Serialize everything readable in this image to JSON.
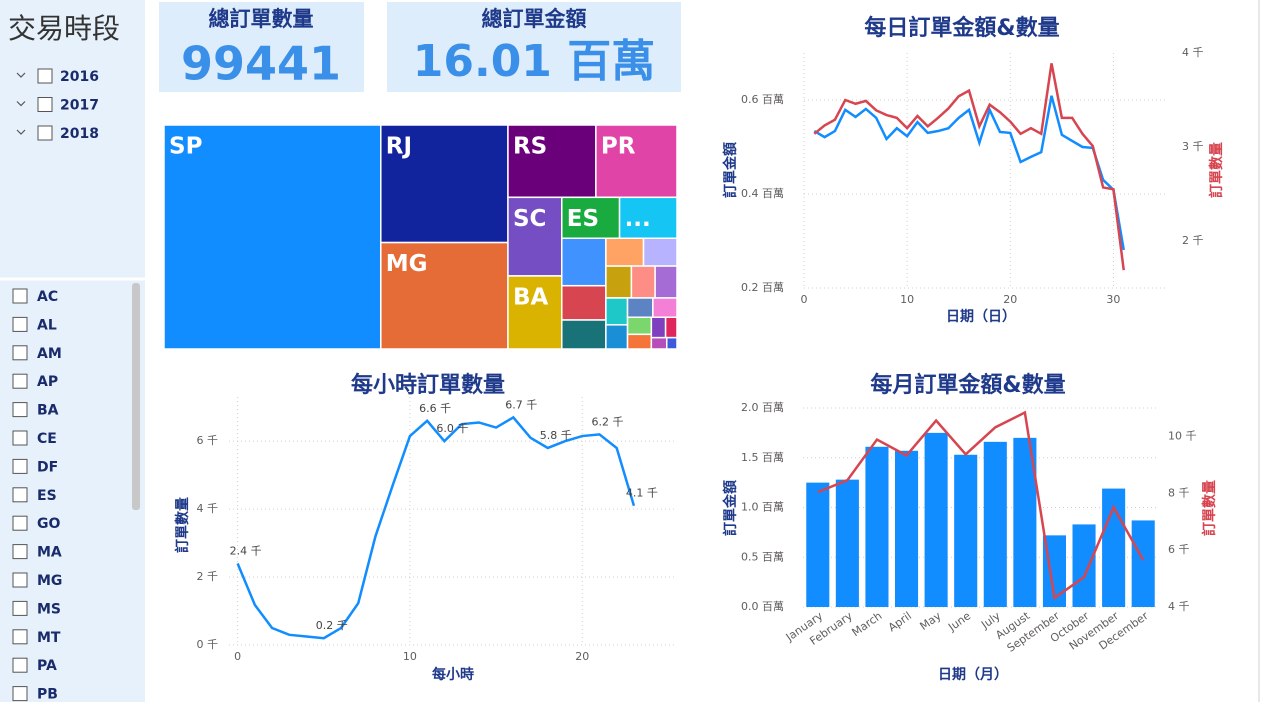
{
  "slicer": {
    "title": "交易時段",
    "years": [
      "2016",
      "2017",
      "2018"
    ],
    "states": [
      "AC",
      "AL",
      "AM",
      "AP",
      "BA",
      "CE",
      "DF",
      "ES",
      "GO",
      "MA",
      "MG",
      "MS",
      "MT",
      "PA",
      "PB"
    ]
  },
  "cards": [
    {
      "title": "總訂單數量",
      "value": 99441
    },
    {
      "title": "總訂單金額",
      "value": "16.01 百萬"
    }
  ],
  "chart_data": [
    {
      "type": "treemap",
      "categories": [
        "SP",
        "RJ",
        "MG",
        "RS",
        "PR",
        "SC",
        "BA",
        "ES",
        "...",
        null,
        null,
        null,
        null,
        null,
        null,
        null,
        null,
        null,
        null,
        null,
        null,
        null,
        null,
        null,
        null,
        null,
        null
      ],
      "values": [
        41746,
        12852,
        11635,
        5466,
        5045,
        3637,
        3380,
        2033,
        2020,
        1800,
        1300,
        1100,
        900,
        800,
        700,
        650,
        600,
        500,
        450,
        420,
        400,
        350,
        300,
        250,
        200,
        150,
        100
      ],
      "colors": [
        "#118dff",
        "#12239e",
        "#e66c37",
        "#6b007b",
        "#e044a7",
        "#744ec2",
        "#d9b300",
        "#1aab40",
        "#15c6f4",
        "#4092ff",
        "#d64550",
        "#197278",
        "#fea363",
        "#b7b3ff",
        "#c8a10f",
        "#fd8d85",
        "#a66cd6",
        "#1ec8c8",
        "#1a8fd6",
        "#5c84c4",
        "#f47fd7",
        "#7bd76d",
        "#f5743a",
        "#7f3fbf",
        "#e0255d",
        "#b54dbb",
        "#3b5bdb"
      ]
    },
    {
      "type": "line",
      "title": "每日訂單金額&數量",
      "xlabel": "日期（日）",
      "ylabel": "訂單金額",
      "y2label": "訂單數量",
      "x": [
        1,
        2,
        3,
        4,
        5,
        6,
        7,
        8,
        9,
        10,
        11,
        12,
        13,
        14,
        15,
        16,
        17,
        18,
        19,
        20,
        21,
        22,
        23,
        24,
        25,
        26,
        27,
        28,
        29,
        30,
        31
      ],
      "series": [
        {
          "color": "#118dff",
          "values": [
            0.534,
            0.521,
            0.534,
            0.579,
            0.564,
            0.581,
            0.562,
            0.517,
            0.54,
            0.523,
            0.553,
            0.53,
            0.534,
            0.54,
            0.562,
            0.579,
            0.509,
            0.579,
            0.532,
            0.53,
            0.468,
            0.479,
            0.489,
            0.609,
            0.526,
            0.513,
            0.5,
            0.498,
            0.43,
            0.409,
            0.281
          ]
        },
        {
          "color": "#d64550",
          "axis": "y2",
          "values": [
            3.14,
            3.23,
            3.29,
            3.5,
            3.46,
            3.49,
            3.39,
            3.34,
            3.31,
            3.2,
            3.33,
            3.22,
            3.31,
            3.41,
            3.54,
            3.6,
            3.22,
            3.45,
            3.37,
            3.27,
            3.14,
            3.2,
            3.14,
            3.89,
            3.31,
            3.31,
            3.14,
            3.01,
            2.57,
            2.55,
            1.69
          ]
        }
      ],
      "xlim": [
        0,
        35
      ],
      "xticks": [
        0,
        10,
        20,
        30
      ],
      "ylim": [
        0.2,
        0.7
      ],
      "yticks": [
        {
          "value": 0.2,
          "label": "0.2 百萬"
        },
        {
          "value": 0.4,
          "label": "0.4 百萬"
        },
        {
          "value": 0.6,
          "label": "0.6 百萬"
        }
      ],
      "y2lim": [
        1.5,
        4
      ],
      "y2ticks": [
        {
          "value": 2,
          "label": "2 千"
        },
        {
          "value": 3,
          "label": "3 千"
        },
        {
          "value": 4,
          "label": "4 千"
        }
      ],
      "grid": true
    },
    {
      "type": "line",
      "title": "每小時訂單數量",
      "xlabel": "每小時",
      "ylabel": "訂單數量",
      "x": [
        0,
        1,
        2,
        3,
        4,
        5,
        6,
        7,
        8,
        9,
        10,
        11,
        12,
        13,
        14,
        15,
        16,
        17,
        18,
        19,
        20,
        21,
        22,
        23
      ],
      "series": [
        {
          "color": "#118dff",
          "values": [
            2.4,
            1.18,
            0.5,
            0.3,
            0.25,
            0.2,
            0.5,
            1.23,
            3.2,
            4.7,
            6.15,
            6.6,
            6.0,
            6.5,
            6.55,
            6.4,
            6.7,
            6.1,
            5.8,
            6.0,
            6.15,
            6.2,
            5.8,
            4.1
          ],
          "value_labels": [
            "2.4 千",
            null,
            null,
            null,
            null,
            "0.2 千",
            null,
            null,
            null,
            null,
            null,
            "6.6 千",
            "6.0 千",
            null,
            null,
            null,
            "6.7 千",
            null,
            "5.8 千",
            null,
            null,
            "6.2 千",
            null,
            "4.1 千"
          ]
        }
      ],
      "xlim": [
        -0.5,
        25.5
      ],
      "xticks": [
        0,
        10,
        20
      ],
      "ylim": [
        0,
        7.3
      ],
      "yticks": [
        {
          "value": 0,
          "label": "0 千"
        },
        {
          "value": 2,
          "label": "2 千"
        },
        {
          "value": 4,
          "label": "4 千"
        },
        {
          "value": 6,
          "label": "6 千"
        }
      ],
      "grid": true
    },
    {
      "type": "bar",
      "title": "每月訂單金額&數量",
      "xlabel": "日期（月）",
      "ylabel": "訂單金額",
      "y2label": "訂單數量",
      "categories": [
        "January",
        "February",
        "March",
        "April",
        "May",
        "June",
        "July",
        "August",
        "September",
        "October",
        "November",
        "December"
      ],
      "series": [
        {
          "type": "bar",
          "color": "#118dff",
          "values": [
            1.25,
            1.28,
            1.61,
            1.57,
            1.75,
            1.53,
            1.66,
            1.7,
            0.72,
            0.83,
            1.19,
            0.87
          ]
        },
        {
          "type": "line",
          "color": "#d64550",
          "axis": "y2",
          "values": [
            8.04,
            8.46,
            9.89,
            9.33,
            10.56,
            9.37,
            10.32,
            10.84,
            4.32,
            5.05,
            7.51,
            5.65
          ]
        }
      ],
      "ylim": [
        0,
        2
      ],
      "yticks": [
        {
          "value": 0,
          "label": "0.0 百萬"
        },
        {
          "value": 0.5,
          "label": "0.5 百萬"
        },
        {
          "value": 1,
          "label": "1.0 百萬"
        },
        {
          "value": 1.5,
          "label": "1.5 百萬"
        },
        {
          "value": 2,
          "label": "2.0 百萬"
        }
      ],
      "y2lim": [
        4,
        11
      ],
      "y2ticks": [
        {
          "value": 4,
          "label": "4 千"
        },
        {
          "value": 6,
          "label": "6 千"
        },
        {
          "value": 8,
          "label": "8 千"
        },
        {
          "value": 10,
          "label": "10 千"
        }
      ],
      "grid": true
    }
  ]
}
